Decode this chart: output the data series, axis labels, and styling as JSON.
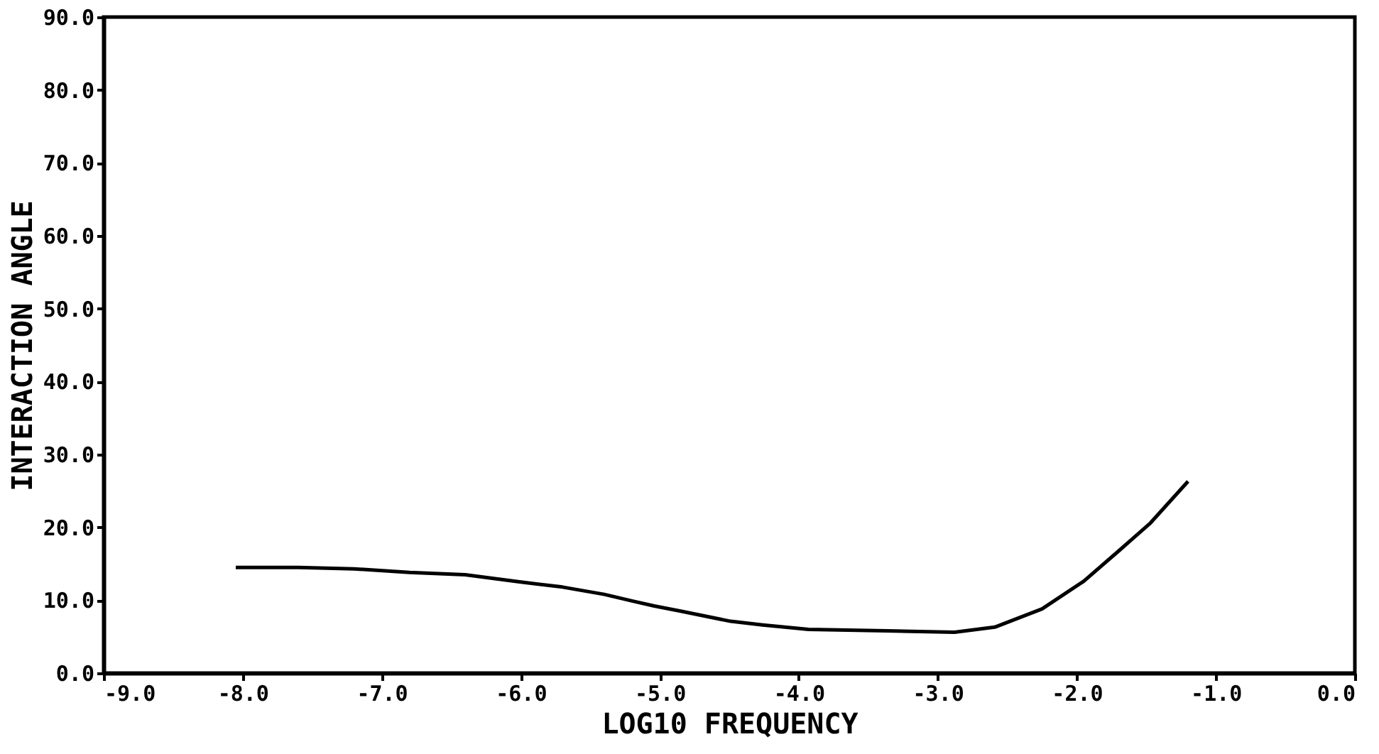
{
  "chart_data": {
    "type": "line",
    "xlabel": "LOG10 FREQUENCY",
    "ylabel": "INTERACTION ANGLE",
    "x": [
      -8.05,
      -7.6,
      -7.2,
      -6.8,
      -6.4,
      -6.0,
      -5.7,
      -5.4,
      -5.2,
      -5.04,
      -4.85,
      -4.49,
      -4.26,
      -3.93,
      -3.37,
      -2.88,
      -2.59,
      -2.25,
      -1.95,
      -1.69,
      -1.47,
      -1.2
    ],
    "series": [
      {
        "color": "#000000",
        "values": [
          14.5,
          14.5,
          14.3,
          13.8,
          13.5,
          12.5,
          11.8,
          10.8,
          9.9,
          9.2,
          8.5,
          7.1,
          6.6,
          6.0,
          5.8,
          5.6,
          6.3,
          8.8,
          12.6,
          16.9,
          20.6,
          26.3
        ]
      }
    ],
    "xlim": [
      -9,
      0
    ],
    "ylim": [
      0,
      90
    ],
    "xticks": [
      {
        "value": -9,
        "label": "-9.0"
      },
      {
        "value": -8,
        "label": "-8.0"
      },
      {
        "value": -7,
        "label": "-7.0"
      },
      {
        "value": -6,
        "label": "-6.0"
      },
      {
        "value": -5,
        "label": "-5.0"
      },
      {
        "value": -4,
        "label": "-4.0"
      },
      {
        "value": -3,
        "label": "-3.0"
      },
      {
        "value": -2,
        "label": "-2.0"
      },
      {
        "value": -1,
        "label": "-1.0"
      },
      {
        "value": 0,
        "label": "0.0"
      }
    ],
    "yticks": [
      {
        "value": 0,
        "label": "0.0"
      },
      {
        "value": 10,
        "label": "10.0"
      },
      {
        "value": 20,
        "label": "20.0"
      },
      {
        "value": 30,
        "label": "30.0"
      },
      {
        "value": 40,
        "label": "40.0"
      },
      {
        "value": 50,
        "label": "50.0"
      },
      {
        "value": 60,
        "label": "60.0"
      },
      {
        "value": 70,
        "label": "70.0"
      },
      {
        "value": 80,
        "label": "80.0"
      },
      {
        "value": 90,
        "label": "90.0"
      }
    ],
    "grid": false,
    "legend": false,
    "line_style": "solid",
    "marker": "none"
  }
}
